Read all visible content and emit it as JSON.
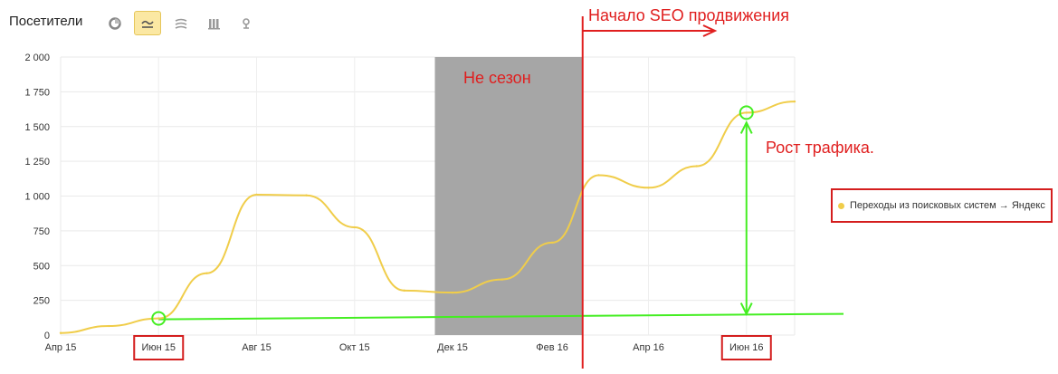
{
  "toolbar": {
    "title": "Посетители",
    "buttons": [
      {
        "icon": "pie-chart-icon",
        "active": false
      },
      {
        "icon": "line-chart-icon",
        "active": true
      },
      {
        "icon": "area-chart-icon",
        "active": false
      },
      {
        "icon": "bar-chart-icon",
        "active": false
      },
      {
        "icon": "map-pin-icon",
        "active": false
      }
    ]
  },
  "annotations": {
    "seo_start": "Начало SEO продвижения",
    "off_season": "Не сезон",
    "traffic_growth": "Рост трафика."
  },
  "legend": {
    "label": "Переходы из поисковых систем → Яндекс",
    "color": "#f0cd4a"
  },
  "colors": {
    "line": "#f0cd4a",
    "annotation": "#e01f1f",
    "highlight": "#44ee22",
    "shade": "#a6a6a6"
  },
  "chart_data": {
    "type": "line",
    "x": [
      "2015-04",
      "2015-05",
      "2015-06",
      "2015-07",
      "2015-08",
      "2015-09",
      "2015-10",
      "2015-11",
      "2015-12",
      "2016-01",
      "2016-02",
      "2016-03",
      "2016-04",
      "2016-05",
      "2016-06",
      "2016-07"
    ],
    "series": [
      {
        "name": "Переходы из поисковых систем → Яндекс",
        "values": [
          15,
          65,
          120,
          445,
          1010,
          1005,
          775,
          320,
          305,
          400,
          665,
          1150,
          1060,
          1215,
          1600,
          1680
        ]
      }
    ],
    "x_tick_labels": [
      "Апр 15",
      "Июн 15",
      "Авг 15",
      "Окт 15",
      "Дек 15",
      "Фев 16",
      "Апр 16",
      "Июн 16"
    ],
    "x_tick_positions": [
      "2015-04",
      "2015-06",
      "2015-08",
      "2015-10",
      "2015-12",
      "2016-02",
      "2016-04",
      "2016-06"
    ],
    "highlighted_ticks": [
      "Июн 15",
      "Июн 16"
    ],
    "y_ticks": [
      0,
      250,
      500,
      750,
      1000,
      1250,
      1500,
      1750,
      2000
    ],
    "y_tick_labels": [
      "0",
      "250",
      "500",
      "750",
      "1 000",
      "1 250",
      "1 500",
      "1 750",
      "2 000"
    ],
    "ylim": [
      0,
      2000
    ],
    "grid": true,
    "shaded_period": {
      "label": "Не сезон",
      "from": "2015-11-20",
      "to": "2016-02-20"
    },
    "seo_start": "2016-02-20",
    "growth_markers": [
      {
        "x": "2015-06",
        "value": 120
      },
      {
        "x": "2016-06",
        "value": 1600
      }
    ]
  }
}
